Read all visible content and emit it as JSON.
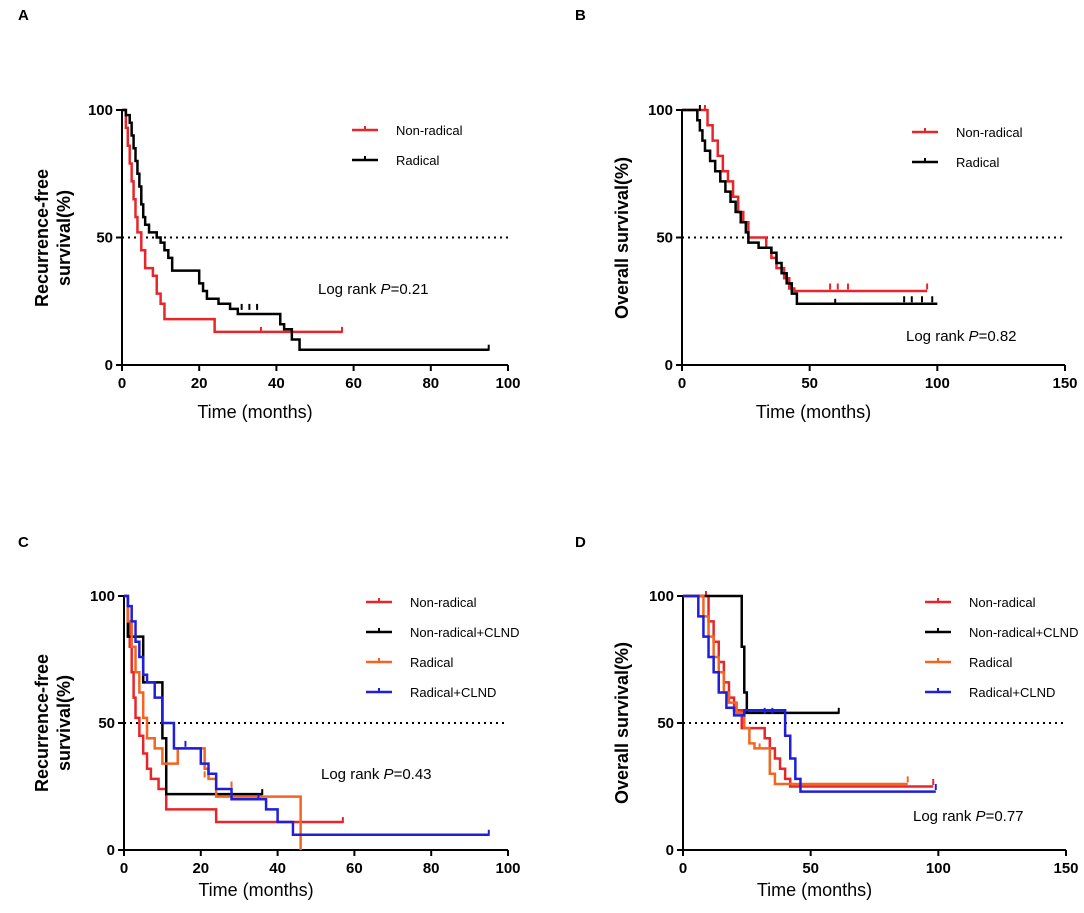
{
  "chart_data": [
    {
      "panel": "A",
      "type": "line",
      "step": true,
      "xlabel": "Time (months)",
      "ylabel": [
        "Recurrence-free",
        "survival(%)"
      ],
      "xlim": [
        0,
        100
      ],
      "ylim": [
        0,
        100
      ],
      "xticks": [
        0,
        20,
        40,
        60,
        80,
        100
      ],
      "yticks": [
        0,
        50,
        100
      ],
      "reference_line": 50,
      "annotation": {
        "prefix": "Log rank ",
        "p": "P",
        "value": "=0.21"
      },
      "series": [
        {
          "name": "Non-radical",
          "color": "#e8262a",
          "points": [
            [
              0,
              100
            ],
            [
              1,
              93
            ],
            [
              1.5,
              86
            ],
            [
              2,
              79
            ],
            [
              2.5,
              72
            ],
            [
              3,
              65
            ],
            [
              3.5,
              58
            ],
            [
              4,
              52
            ],
            [
              5,
              45
            ],
            [
              6,
              38
            ],
            [
              8,
              35
            ],
            [
              9,
              28
            ],
            [
              10,
              24
            ],
            [
              11,
              18
            ],
            [
              24,
              18
            ],
            [
              24,
              13
            ],
            [
              57,
              13
            ]
          ],
          "censored": [
            [
              36,
              13
            ],
            [
              57,
              13
            ]
          ]
        },
        {
          "name": "Radical",
          "color": "#000000",
          "points": [
            [
              0,
              100
            ],
            [
              1,
              98
            ],
            [
              2,
              95
            ],
            [
              2.5,
              90
            ],
            [
              3,
              85
            ],
            [
              3.5,
              80
            ],
            [
              4,
              75
            ],
            [
              4.5,
              70
            ],
            [
              5,
              63
            ],
            [
              5.5,
              58
            ],
            [
              6,
              55
            ],
            [
              7,
              52
            ],
            [
              9,
              50
            ],
            [
              10,
              48
            ],
            [
              11,
              45
            ],
            [
              12,
              42
            ],
            [
              13,
              37
            ],
            [
              19,
              37
            ],
            [
              20,
              32
            ],
            [
              21,
              29
            ],
            [
              22,
              26
            ],
            [
              25,
              24
            ],
            [
              28,
              22
            ],
            [
              30,
              20
            ],
            [
              40,
              20
            ],
            [
              41,
              16
            ],
            [
              42,
              14
            ],
            [
              44,
              10
            ],
            [
              46,
              6
            ],
            [
              95,
              6
            ]
          ],
          "censored": [
            [
              31,
              22
            ],
            [
              33,
              22
            ],
            [
              35,
              22
            ],
            [
              95,
              6
            ]
          ]
        }
      ]
    },
    {
      "panel": "B",
      "type": "line",
      "step": true,
      "xlabel": "Time (months)",
      "ylabel": [
        "Overall survival(%)"
      ],
      "xlim": [
        0,
        150
      ],
      "ylim": [
        0,
        100
      ],
      "xticks": [
        0,
        50,
        100,
        150
      ],
      "yticks": [
        0,
        50,
        100
      ],
      "reference_line": 50,
      "annotation": {
        "prefix": "Log rank ",
        "p": "P",
        "value": "=0.82"
      },
      "series": [
        {
          "name": "Non-radical",
          "color": "#e8262a",
          "points": [
            [
              0,
              100
            ],
            [
              9,
              100
            ],
            [
              10,
              94
            ],
            [
              12,
              88
            ],
            [
              14,
              82
            ],
            [
              16,
              76
            ],
            [
              18,
              72
            ],
            [
              20,
              66
            ],
            [
              22,
              60
            ],
            [
              24,
              56
            ],
            [
              26,
              50
            ],
            [
              32,
              50
            ],
            [
              33,
              46
            ],
            [
              35,
              42
            ],
            [
              37,
              38
            ],
            [
              40,
              34
            ],
            [
              42,
              30
            ],
            [
              44,
              29
            ],
            [
              96,
              29
            ]
          ],
          "censored": [
            [
              9,
              100
            ],
            [
              58,
              30
            ],
            [
              61,
              30
            ],
            [
              65,
              30
            ],
            [
              96,
              30
            ]
          ]
        },
        {
          "name": "Radical",
          "color": "#000000",
          "points": [
            [
              0,
              100
            ],
            [
              5,
              100
            ],
            [
              6,
              96
            ],
            [
              7,
              92
            ],
            [
              8,
              88
            ],
            [
              9,
              84
            ],
            [
              11,
              80
            ],
            [
              13,
              76
            ],
            [
              15,
              72
            ],
            [
              17,
              68
            ],
            [
              19,
              64
            ],
            [
              21,
              60
            ],
            [
              23,
              56
            ],
            [
              25,
              52
            ],
            [
              26,
              48
            ],
            [
              29,
              48
            ],
            [
              30,
              46
            ],
            [
              34,
              46
            ],
            [
              35,
              44
            ],
            [
              37,
              40
            ],
            [
              39,
              36
            ],
            [
              41,
              32
            ],
            [
              43,
              28
            ],
            [
              45,
              24
            ],
            [
              100,
              24
            ]
          ],
          "censored": [
            [
              7,
              100
            ],
            [
              60,
              24
            ],
            [
              87,
              25
            ],
            [
              90,
              25
            ],
            [
              94,
              25
            ],
            [
              98,
              25
            ]
          ]
        }
      ]
    },
    {
      "panel": "C",
      "type": "line",
      "step": true,
      "xlabel": "Time (months)",
      "ylabel": [
        "Recurrence-free",
        "survival(%)"
      ],
      "xlim": [
        0,
        100
      ],
      "ylim": [
        0,
        100
      ],
      "xticks": [
        0,
        20,
        40,
        60,
        80,
        100
      ],
      "yticks": [
        0,
        50,
        100
      ],
      "reference_line": 50,
      "annotation": {
        "prefix": "Log rank ",
        "p": "P",
        "value": "=0.43"
      },
      "series": [
        {
          "name": "Non-radical",
          "color": "#e8262a",
          "points": [
            [
              0,
              100
            ],
            [
              1,
              90
            ],
            [
              1.5,
              80
            ],
            [
              2,
              70
            ],
            [
              2.5,
              60
            ],
            [
              3,
              52
            ],
            [
              4,
              45
            ],
            [
              5,
              38
            ],
            [
              6,
              32
            ],
            [
              7,
              28
            ],
            [
              9,
              24
            ],
            [
              11,
              16
            ],
            [
              24,
              16
            ],
            [
              24,
              11
            ],
            [
              57,
              11
            ]
          ],
          "censored": [
            [
              57,
              11
            ]
          ]
        },
        {
          "name": "Non-radical+CLND",
          "color": "#000000",
          "points": [
            [
              0,
              100
            ],
            [
              1,
              84
            ],
            [
              4,
              84
            ],
            [
              5,
              66
            ],
            [
              9,
              66
            ],
            [
              10,
              44
            ],
            [
              11,
              22
            ],
            [
              36,
              22
            ]
          ],
          "censored": [
            [
              36,
              22
            ]
          ]
        },
        {
          "name": "Radical",
          "color": "#f26522",
          "points": [
            [
              0,
              100
            ],
            [
              1,
              90
            ],
            [
              2,
              80
            ],
            [
              3,
              70
            ],
            [
              4,
              62
            ],
            [
              5,
              52
            ],
            [
              6,
              44
            ],
            [
              8,
              40
            ],
            [
              10,
              34
            ],
            [
              13,
              34
            ],
            [
              14,
              40
            ],
            [
              20,
              40
            ],
            [
              21,
              32
            ],
            [
              22,
              28
            ],
            [
              24,
              21
            ],
            [
              46,
              21
            ],
            [
              46,
              0
            ]
          ],
          "censored": [
            [
              21,
              29
            ],
            [
              28,
              25
            ]
          ]
        },
        {
          "name": "Radical+CLND",
          "color": "#1f1fdb",
          "points": [
            [
              0,
              100
            ],
            [
              1,
              96
            ],
            [
              2,
              90
            ],
            [
              3,
              82
            ],
            [
              4,
              76
            ],
            [
              5,
              69
            ],
            [
              6,
              66
            ],
            [
              8,
              60
            ],
            [
              10,
              50
            ],
            [
              13,
              40
            ],
            [
              18,
              40
            ],
            [
              20,
              34
            ],
            [
              22,
              30
            ],
            [
              24,
              24
            ],
            [
              28,
              20
            ],
            [
              34,
              20
            ],
            [
              37,
              16
            ],
            [
              40,
              11
            ],
            [
              44,
              6
            ],
            [
              95,
              6
            ]
          ],
          "censored": [
            [
              16,
              41
            ],
            [
              28,
              20
            ],
            [
              35,
              20
            ],
            [
              95,
              6
            ]
          ]
        }
      ]
    },
    {
      "panel": "D",
      "type": "line",
      "step": true,
      "xlabel": "Time (months)",
      "ylabel": [
        "Overall survival(%)"
      ],
      "xlim": [
        0,
        150
      ],
      "ylim": [
        0,
        100
      ],
      "xticks": [
        0,
        50,
        100,
        150
      ],
      "yticks": [
        0,
        50,
        100
      ],
      "reference_line": 50,
      "annotation": {
        "prefix": "Log rank ",
        "p": "P",
        "value": "=0.77"
      },
      "series": [
        {
          "name": "Non-radical",
          "color": "#e8262a",
          "points": [
            [
              0,
              100
            ],
            [
              9,
              100
            ],
            [
              10,
              90
            ],
            [
              12,
              82
            ],
            [
              14,
              74
            ],
            [
              16,
              66
            ],
            [
              18,
              60
            ],
            [
              20,
              55
            ],
            [
              23,
              48
            ],
            [
              32,
              44
            ],
            [
              34,
              40
            ],
            [
              36,
              36
            ],
            [
              38,
              32
            ],
            [
              40,
              28
            ],
            [
              42,
              25
            ],
            [
              98,
              25
            ]
          ],
          "censored": [
            [
              9,
              100
            ],
            [
              98,
              26
            ]
          ]
        },
        {
          "name": "Non-radical+CLND",
          "color": "#000000",
          "points": [
            [
              0,
              100
            ],
            [
              22,
              100
            ],
            [
              23,
              80
            ],
            [
              24,
              62
            ],
            [
              25,
              54
            ],
            [
              61,
              54
            ]
          ],
          "censored": [
            [
              61,
              54
            ]
          ]
        },
        {
          "name": "Radical",
          "color": "#f26522",
          "points": [
            [
              0,
              100
            ],
            [
              7,
              100
            ],
            [
              8,
              92
            ],
            [
              10,
              84
            ],
            [
              12,
              76
            ],
            [
              14,
              70
            ],
            [
              16,
              62
            ],
            [
              18,
              58
            ],
            [
              21,
              54
            ],
            [
              24,
              48
            ],
            [
              26,
              42
            ],
            [
              28,
              40
            ],
            [
              33,
              40
            ],
            [
              34,
              30
            ],
            [
              36,
              26
            ],
            [
              88,
              26
            ]
          ],
          "censored": [
            [
              30,
              40
            ],
            [
              88,
              27
            ]
          ]
        },
        {
          "name": "Radical+CLND",
          "color": "#1f1fdb",
          "points": [
            [
              0,
              100
            ],
            [
              5,
              100
            ],
            [
              6,
              92
            ],
            [
              8,
              84
            ],
            [
              10,
              76
            ],
            [
              12,
              70
            ],
            [
              14,
              62
            ],
            [
              17,
              56
            ],
            [
              20,
              53
            ],
            [
              24,
              55
            ],
            [
              38,
              55
            ],
            [
              40,
              45
            ],
            [
              42,
              36
            ],
            [
              44,
              28
            ],
            [
              46,
              23
            ],
            [
              99,
              23
            ]
          ],
          "censored": [
            [
              32,
              54
            ],
            [
              35,
              54
            ],
            [
              99,
              24
            ]
          ]
        }
      ]
    }
  ]
}
